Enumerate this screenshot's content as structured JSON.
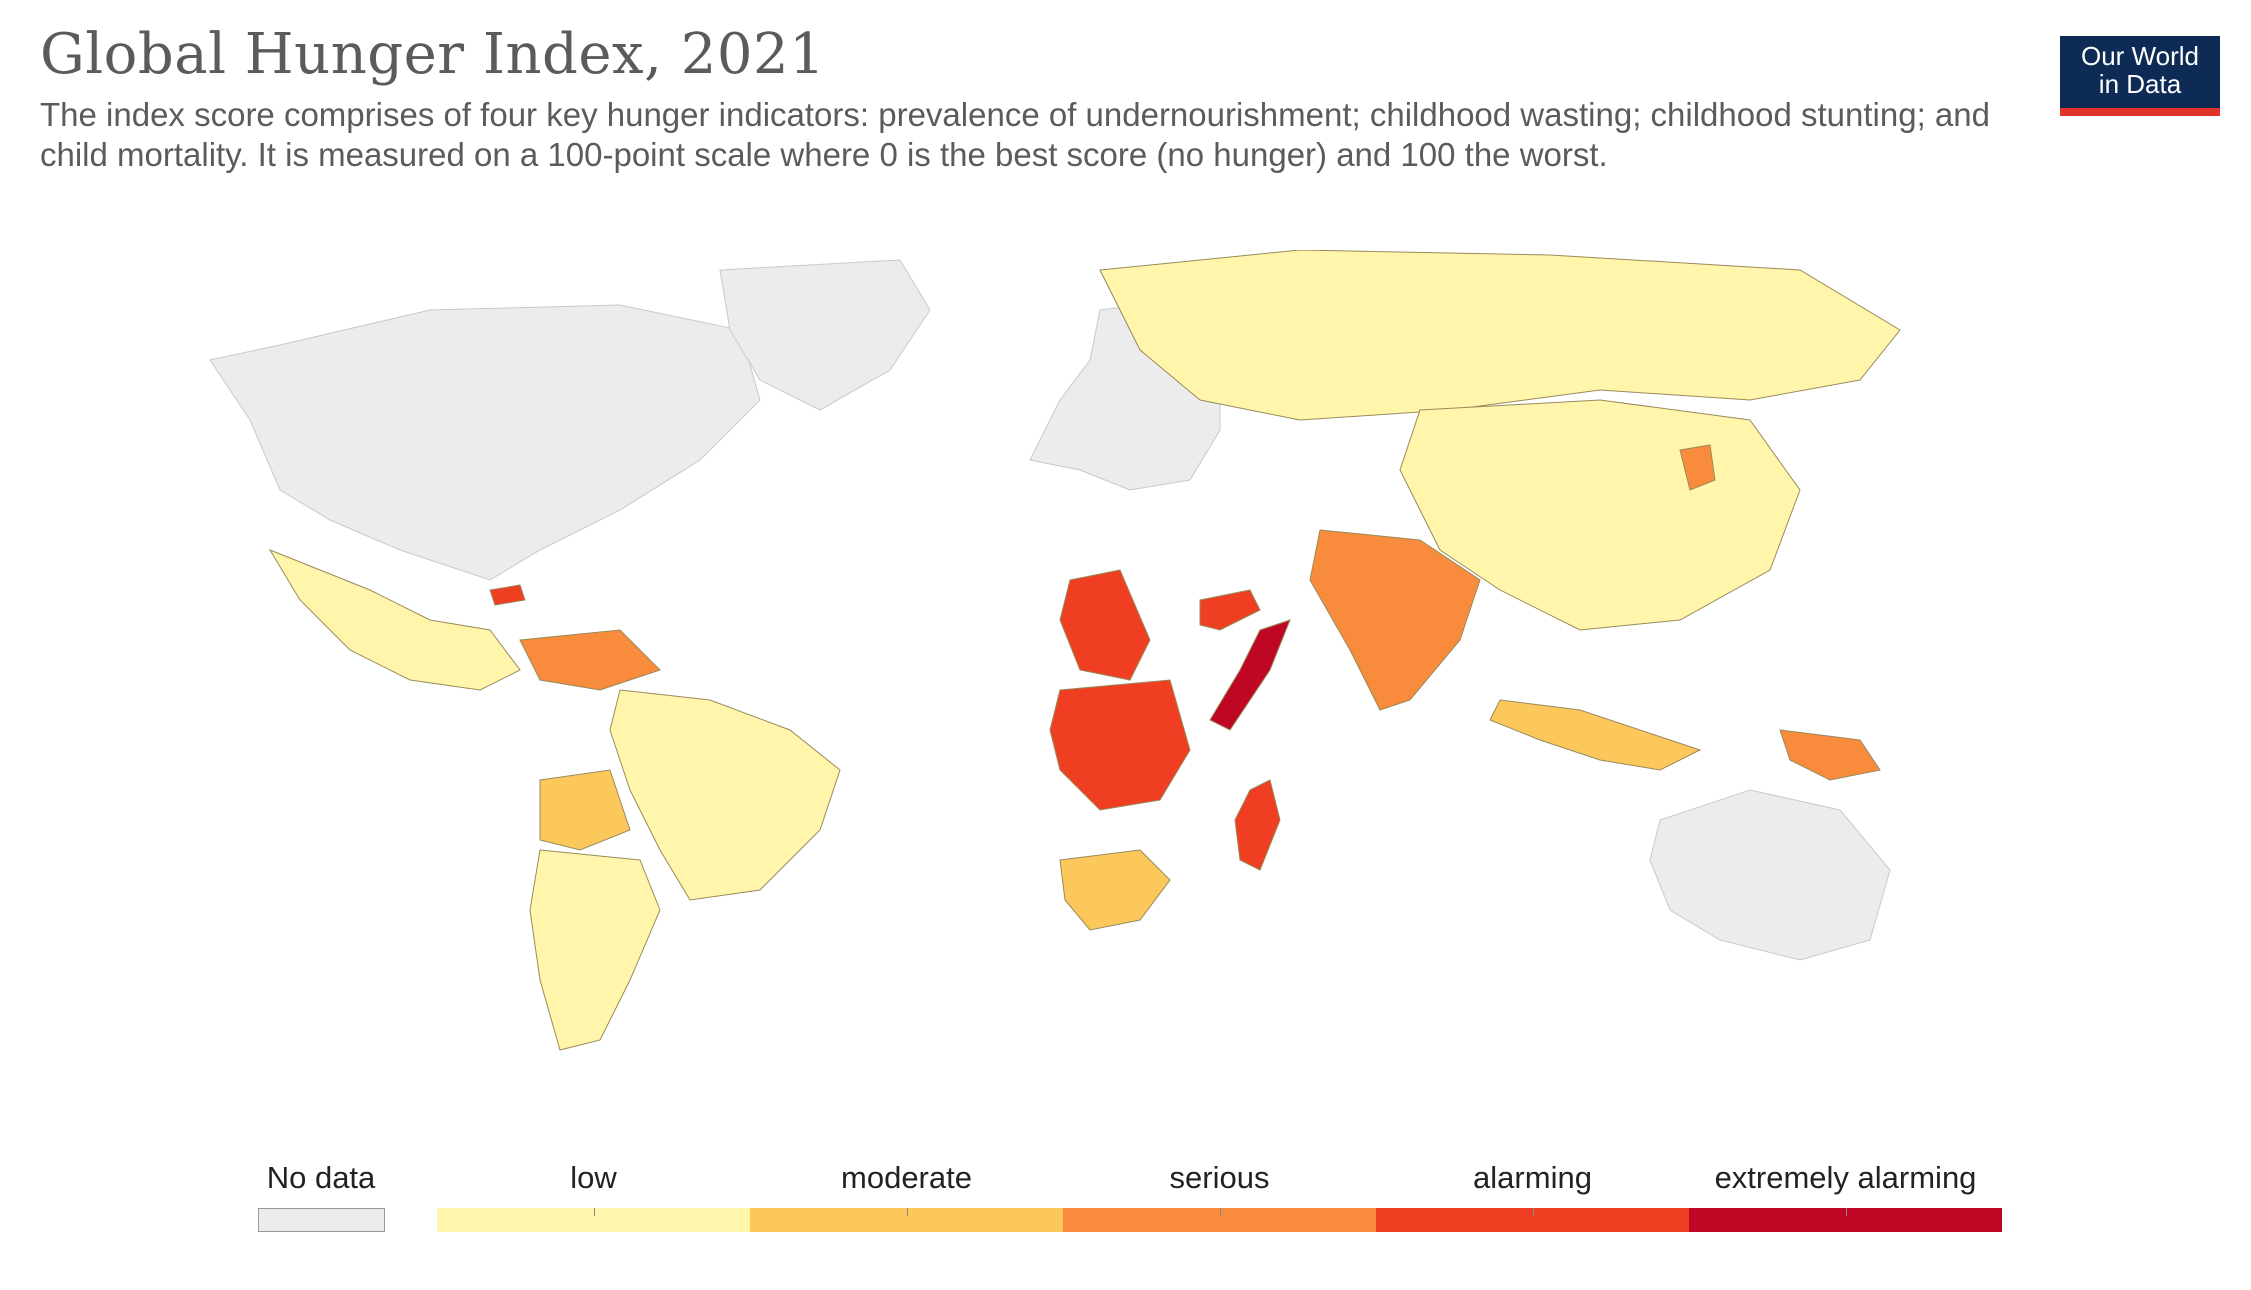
{
  "header": {
    "title": "Global Hunger Index, 2021",
    "subtitle": "The index score comprises of four key hunger indicators: prevalence of undernourishment; childhood wasting; childhood stunting; and child mortality. It is measured on a 100-point scale where 0 is the best score (no hunger) and 100 the worst."
  },
  "logo": {
    "line1": "Our World",
    "line2": "in Data"
  },
  "colors": {
    "no_data": "#ececec",
    "low": "#fff6ac",
    "moderate": "#fcc85b",
    "serious": "#f98c3c",
    "alarming": "#ef3e22",
    "extremely_alarming": "#bf0625",
    "border": "#9a8a5a",
    "no_data_border": "#c9c9c9"
  },
  "legend": {
    "no_data": "No data",
    "categories": [
      "low",
      "moderate",
      "serious",
      "alarming",
      "extremely alarming"
    ]
  },
  "regions": [
    {
      "name": "North America",
      "category": "no_data"
    },
    {
      "name": "Greenland",
      "category": "no_data"
    },
    {
      "name": "Europe",
      "category": "no_data"
    },
    {
      "name": "Australia",
      "category": "no_data"
    },
    {
      "name": "Mexico",
      "category": "low"
    },
    {
      "name": "Brazil",
      "category": "low"
    },
    {
      "name": "Argentina",
      "category": "low"
    },
    {
      "name": "Bolivia",
      "category": "moderate"
    },
    {
      "name": "Venezuela",
      "category": "serious"
    },
    {
      "name": "Russia",
      "category": "low"
    },
    {
      "name": "China",
      "category": "low"
    },
    {
      "name": "India",
      "category": "serious"
    },
    {
      "name": "Chad",
      "category": "alarming"
    },
    {
      "name": "DR Congo",
      "category": "alarming"
    },
    {
      "name": "Madagascar",
      "category": "alarming"
    },
    {
      "name": "Yemen",
      "category": "alarming"
    },
    {
      "name": "Somalia",
      "category": "extremely_alarming"
    },
    {
      "name": "South Africa",
      "category": "moderate"
    },
    {
      "name": "Indonesia",
      "category": "moderate"
    },
    {
      "name": "Haiti",
      "category": "alarming"
    },
    {
      "name": "North Korea",
      "category": "serious"
    },
    {
      "name": "Papua New Guinea",
      "category": "serious"
    }
  ]
}
